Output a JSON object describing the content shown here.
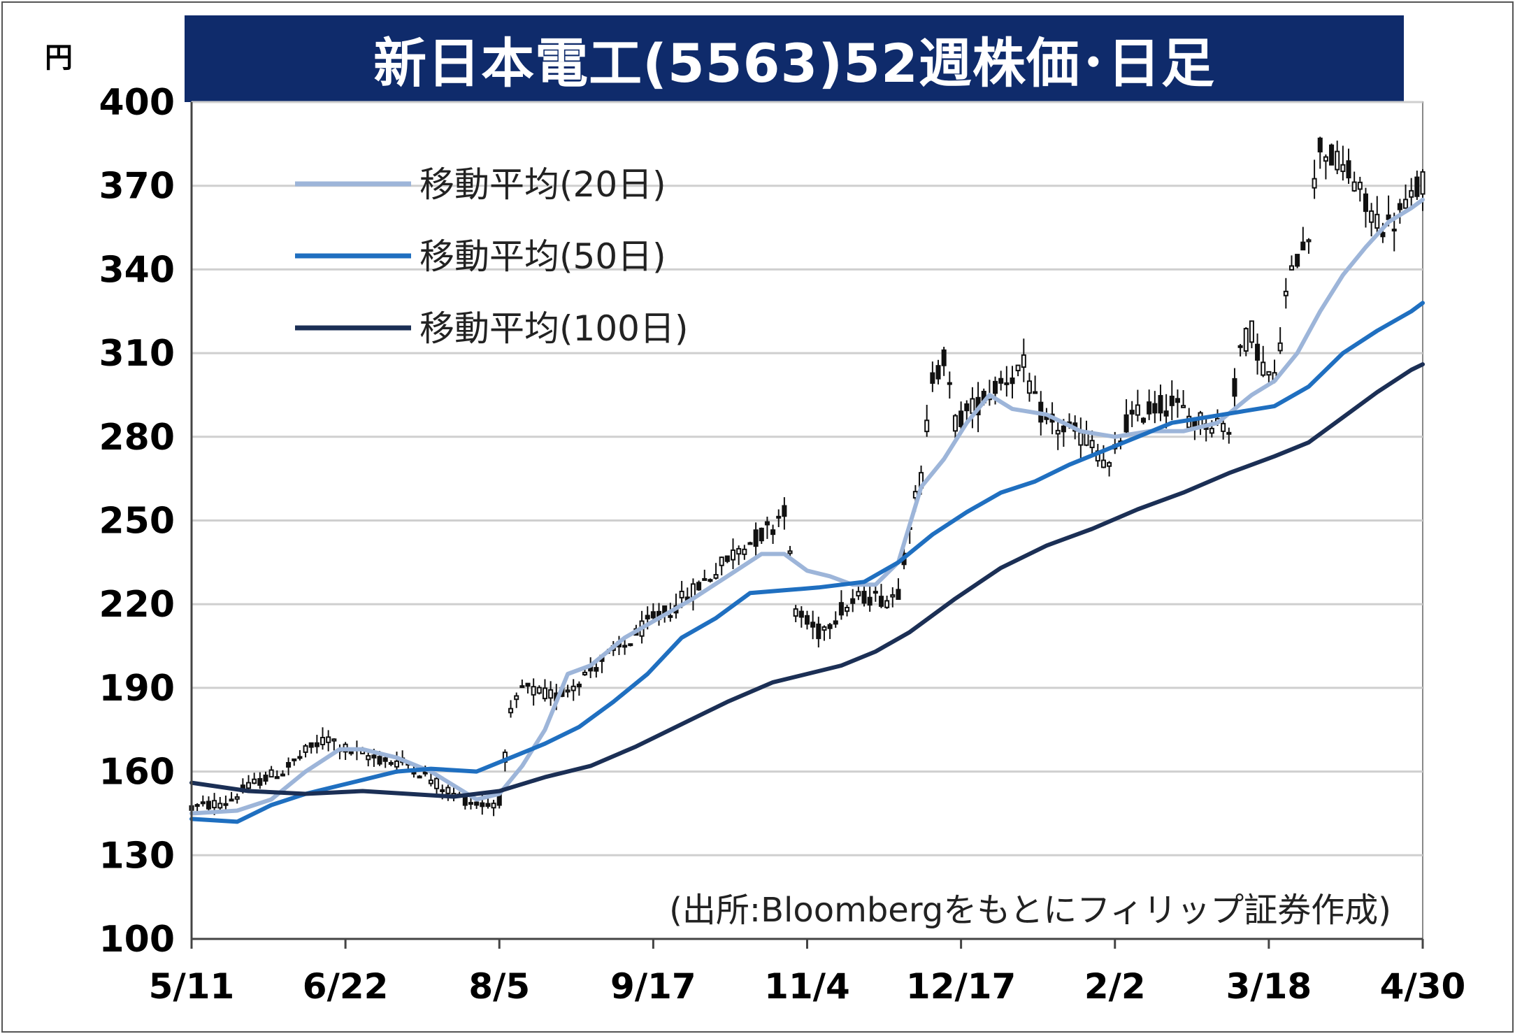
{
  "colors": {
    "title_bg": "#0f2b6b",
    "ma20": "#9db5d9",
    "ma50": "#1f6fc0",
    "ma100": "#1b2f55",
    "grid": "#cfcfcf",
    "candle": "#111111"
  },
  "chart_data": {
    "type": "candlestick",
    "title": "新日本電工(5563)52週株価･日足",
    "unit_label": "円",
    "source": "(出所:Bloombergをもとにフィリップ証券作成)",
    "ylim": [
      100,
      400
    ],
    "yticks": [
      100,
      130,
      160,
      190,
      220,
      250,
      280,
      310,
      340,
      370,
      400
    ],
    "xticks": [
      "5/11",
      "6/22",
      "8/5",
      "9/17",
      "11/4",
      "12/17",
      "2/2",
      "3/18",
      "4/30"
    ],
    "grid": "horizontal",
    "legend_position": "top-left",
    "legend": [
      "移動平均(20日)",
      "移動平均(50日)",
      "移動平均(100日)"
    ],
    "close_path": [
      [
        0,
        147
      ],
      [
        6,
        149
      ],
      [
        12,
        157
      ],
      [
        16,
        160
      ],
      [
        20,
        167
      ],
      [
        24,
        172
      ],
      [
        27,
        168
      ],
      [
        30,
        166
      ],
      [
        34,
        164
      ],
      [
        38,
        163
      ],
      [
        42,
        157
      ],
      [
        46,
        152
      ],
      [
        49,
        149
      ],
      [
        52,
        148
      ],
      [
        54,
        150
      ],
      [
        56,
        180
      ],
      [
        58,
        190
      ],
      [
        61,
        188
      ],
      [
        64,
        187
      ],
      [
        68,
        193
      ],
      [
        72,
        200
      ],
      [
        76,
        205
      ],
      [
        80,
        213
      ],
      [
        84,
        218
      ],
      [
        88,
        225
      ],
      [
        92,
        232
      ],
      [
        96,
        240
      ],
      [
        100,
        245
      ],
      [
        102,
        248
      ],
      [
        104,
        255
      ],
      [
        106,
        218
      ],
      [
        108,
        213
      ],
      [
        110,
        210
      ],
      [
        114,
        218
      ],
      [
        118,
        223
      ],
      [
        122,
        222
      ],
      [
        124,
        225
      ],
      [
        126,
        250
      ],
      [
        128,
        265
      ],
      [
        130,
        302
      ],
      [
        132,
        308
      ],
      [
        134,
        285
      ],
      [
        138,
        292
      ],
      [
        142,
        300
      ],
      [
        146,
        305
      ],
      [
        148,
        292
      ],
      [
        150,
        285
      ],
      [
        154,
        282
      ],
      [
        158,
        278
      ],
      [
        161,
        268
      ],
      [
        164,
        285
      ],
      [
        168,
        290
      ],
      [
        172,
        292
      ],
      [
        176,
        286
      ],
      [
        180,
        285
      ],
      [
        182,
        283
      ],
      [
        184,
        312
      ],
      [
        186,
        318
      ],
      [
        188,
        305
      ],
      [
        190,
        300
      ],
      [
        192,
        330
      ],
      [
        194,
        345
      ],
      [
        196,
        355
      ],
      [
        198,
        385
      ],
      [
        200,
        380
      ],
      [
        204,
        372
      ],
      [
        206,
        362
      ],
      [
        208,
        358
      ],
      [
        210,
        355
      ],
      [
        214,
        365
      ],
      [
        216,
        372
      ]
    ],
    "series": [
      {
        "name": "移動平均(20日)",
        "points": [
          [
            0,
            145
          ],
          [
            8,
            146
          ],
          [
            14,
            150
          ],
          [
            20,
            160
          ],
          [
            26,
            168
          ],
          [
            30,
            168
          ],
          [
            36,
            165
          ],
          [
            42,
            160
          ],
          [
            46,
            155
          ],
          [
            50,
            150
          ],
          [
            54,
            152
          ],
          [
            58,
            162
          ],
          [
            62,
            175
          ],
          [
            66,
            195
          ],
          [
            70,
            198
          ],
          [
            76,
            208
          ],
          [
            82,
            215
          ],
          [
            88,
            222
          ],
          [
            94,
            230
          ],
          [
            100,
            238
          ],
          [
            104,
            238
          ],
          [
            108,
            232
          ],
          [
            112,
            230
          ],
          [
            116,
            227
          ],
          [
            120,
            227
          ],
          [
            124,
            235
          ],
          [
            128,
            262
          ],
          [
            132,
            272
          ],
          [
            136,
            285
          ],
          [
            140,
            295
          ],
          [
            144,
            290
          ],
          [
            150,
            288
          ],
          [
            156,
            282
          ],
          [
            162,
            280
          ],
          [
            168,
            282
          ],
          [
            174,
            282
          ],
          [
            180,
            285
          ],
          [
            186,
            295
          ],
          [
            190,
            300
          ],
          [
            194,
            310
          ],
          [
            198,
            325
          ],
          [
            202,
            338
          ],
          [
            206,
            348
          ],
          [
            210,
            357
          ],
          [
            214,
            362
          ],
          [
            216,
            365
          ]
        ]
      },
      {
        "name": "移動平均(50日)",
        "points": [
          [
            0,
            143
          ],
          [
            8,
            142
          ],
          [
            14,
            148
          ],
          [
            20,
            152
          ],
          [
            26,
            155
          ],
          [
            30,
            157
          ],
          [
            36,
            160
          ],
          [
            42,
            161
          ],
          [
            50,
            160
          ],
          [
            56,
            165
          ],
          [
            62,
            170
          ],
          [
            68,
            176
          ],
          [
            74,
            185
          ],
          [
            80,
            195
          ],
          [
            86,
            208
          ],
          [
            92,
            215
          ],
          [
            98,
            224
          ],
          [
            104,
            225
          ],
          [
            110,
            226
          ],
          [
            118,
            228
          ],
          [
            124,
            235
          ],
          [
            130,
            245
          ],
          [
            136,
            253
          ],
          [
            142,
            260
          ],
          [
            148,
            264
          ],
          [
            154,
            270
          ],
          [
            160,
            275
          ],
          [
            166,
            280
          ],
          [
            172,
            285
          ],
          [
            178,
            287
          ],
          [
            184,
            289
          ],
          [
            190,
            291
          ],
          [
            196,
            298
          ],
          [
            202,
            310
          ],
          [
            208,
            318
          ],
          [
            214,
            325
          ],
          [
            216,
            328
          ]
        ]
      },
      {
        "name": "移動平均(100日)",
        "points": [
          [
            0,
            156
          ],
          [
            10,
            153
          ],
          [
            20,
            152
          ],
          [
            30,
            153
          ],
          [
            38,
            152
          ],
          [
            46,
            151
          ],
          [
            54,
            153
          ],
          [
            62,
            158
          ],
          [
            70,
            162
          ],
          [
            78,
            169
          ],
          [
            86,
            177
          ],
          [
            94,
            185
          ],
          [
            102,
            192
          ],
          [
            108,
            195
          ],
          [
            114,
            198
          ],
          [
            120,
            203
          ],
          [
            126,
            210
          ],
          [
            134,
            222
          ],
          [
            142,
            233
          ],
          [
            150,
            241
          ],
          [
            158,
            247
          ],
          [
            166,
            254
          ],
          [
            174,
            260
          ],
          [
            182,
            267
          ],
          [
            190,
            273
          ],
          [
            196,
            278
          ],
          [
            202,
            287
          ],
          [
            208,
            296
          ],
          [
            214,
            304
          ],
          [
            216,
            306
          ]
        ]
      }
    ]
  }
}
